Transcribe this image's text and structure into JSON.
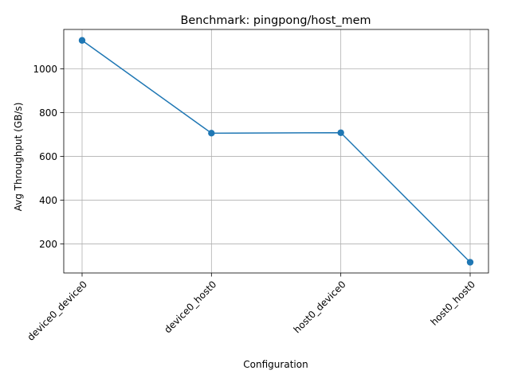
{
  "chart_data": {
    "type": "line",
    "title": "Benchmark: pingpong/host_mem",
    "xlabel": "Configuration",
    "ylabel": "Avg Throughput (GB/s)",
    "categories": [
      "device0_device0",
      "device0_host0",
      "host0_device0",
      "host0_host0"
    ],
    "series": [
      {
        "values": [
          1130,
          706,
          708,
          116
        ],
        "color": "#1f77b4"
      }
    ],
    "yticks": [
      200,
      400,
      600,
      800,
      1000
    ],
    "ylim": [
      67,
      1180
    ],
    "grid": true,
    "legend": "none"
  }
}
